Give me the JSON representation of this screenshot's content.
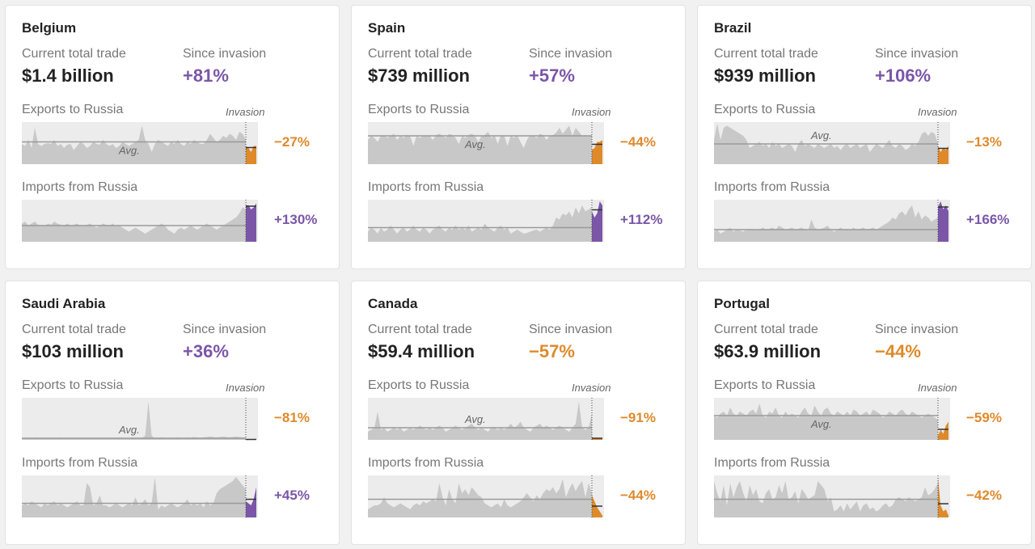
{
  "colors": {
    "up": "#7b56a8",
    "down": "#de8a2b",
    "bg": "#ececec",
    "area": "#c8c8c8",
    "avg": "#9a9a9a"
  },
  "labels": {
    "current_total_trade": "Current total trade",
    "since_invasion": "Since invasion",
    "exports": "Exports to Russia",
    "imports": "Imports from Russia",
    "invasion": "Invasion",
    "avg": "Avg."
  },
  "chart_data": [
    {
      "type": "area",
      "country": "Belgium",
      "total_trade": "$1.4 billion",
      "since_invasion": "+81%",
      "since_dir": "up",
      "exports": {
        "change": "−27%",
        "dir": "down",
        "avg": 0.55,
        "show_avg_label": true,
        "pre": [
          0.5,
          0.45,
          0.6,
          0.4,
          0.9,
          0.5,
          0.45,
          0.5,
          0.52,
          0.5,
          0.6,
          0.45,
          0.5,
          0.4,
          0.48,
          0.5,
          0.35,
          0.45,
          0.55,
          0.5,
          0.4,
          0.45,
          0.55,
          0.5,
          0.48,
          0.6,
          0.5,
          0.45,
          0.5,
          0.4,
          0.45,
          0.55,
          0.5,
          0.45,
          0.5,
          0.55,
          0.6,
          0.95,
          0.6,
          0.5,
          0.3,
          0.5,
          0.6,
          0.55,
          0.5,
          0.45,
          0.55,
          0.5,
          0.6,
          0.5,
          0.45,
          0.55,
          0.5,
          0.6,
          0.55,
          0.5,
          0.5,
          0.6,
          0.75,
          0.65,
          0.55,
          0.6,
          0.7,
          0.65,
          0.75,
          0.7,
          0.6,
          0.8,
          0.75,
          0.6
        ],
        "post": [
          0.45,
          0.4,
          0.3,
          0.45,
          0.45
        ]
      },
      "imports": {
        "change": "+130%",
        "dir": "up",
        "avg": 0.4,
        "pre": [
          0.45,
          0.5,
          0.4,
          0.45,
          0.5,
          0.42,
          0.4,
          0.38,
          0.45,
          0.42,
          0.5,
          0.45,
          0.42,
          0.4,
          0.45,
          0.4,
          0.42,
          0.45,
          0.4,
          0.38,
          0.42,
          0.45,
          0.4,
          0.35,
          0.4,
          0.45,
          0.42,
          0.4,
          0.45,
          0.38,
          0.4,
          0.35,
          0.3,
          0.25,
          0.3,
          0.35,
          0.3,
          0.25,
          0.2,
          0.25,
          0.3,
          0.35,
          0.4,
          0.45,
          0.4,
          0.3,
          0.25,
          0.2,
          0.3,
          0.35,
          0.3,
          0.35,
          0.4,
          0.35,
          0.3,
          0.35,
          0.4,
          0.45,
          0.4,
          0.35,
          0.3,
          0.35,
          0.4,
          0.45,
          0.5,
          0.55,
          0.6,
          0.7,
          0.85,
          0.8
        ],
        "post": [
          0.9,
          0.9,
          0.8,
          0.85,
          0.95
        ]
      }
    },
    {
      "type": "area",
      "country": "Spain",
      "total_trade": "$739 million",
      "since_invasion": "+57%",
      "since_dir": "up",
      "exports": {
        "change": "−44%",
        "dir": "down",
        "avg": 0.7,
        "show_avg_label": true,
        "pre": [
          0.6,
          0.7,
          0.65,
          0.55,
          0.7,
          0.72,
          0.65,
          0.7,
          0.75,
          0.6,
          0.7,
          0.65,
          0.72,
          0.7,
          0.45,
          0.7,
          0.65,
          0.7,
          0.72,
          0.7,
          0.6,
          0.72,
          0.75,
          0.7,
          0.65,
          0.75,
          0.72,
          0.65,
          0.5,
          0.7,
          0.65,
          0.72,
          0.75,
          0.7,
          0.55,
          0.7,
          0.72,
          0.8,
          0.65,
          0.72,
          0.5,
          0.72,
          0.7,
          0.45,
          0.7,
          0.65,
          0.72,
          0.55,
          0.4,
          0.6,
          0.72,
          0.7,
          0.65,
          0.75,
          0.72,
          0.6,
          0.7,
          0.72,
          0.78,
          0.9,
          0.75,
          0.85,
          0.95,
          0.7,
          0.9,
          0.8,
          0.7,
          0.72,
          0.7,
          0.7
        ],
        "post": [
          0.35,
          0.4,
          0.55,
          0.55,
          0.6
        ]
      },
      "imports": {
        "change": "+112%",
        "dir": "up",
        "avg": 0.35,
        "pre": [
          0.25,
          0.35,
          0.3,
          0.2,
          0.35,
          0.25,
          0.3,
          0.4,
          0.3,
          0.2,
          0.3,
          0.35,
          0.25,
          0.3,
          0.4,
          0.3,
          0.25,
          0.35,
          0.3,
          0.2,
          0.3,
          0.35,
          0.4,
          0.3,
          0.25,
          0.35,
          0.3,
          0.4,
          0.3,
          0.35,
          0.3,
          0.4,
          0.25,
          0.3,
          0.35,
          0.3,
          0.45,
          0.35,
          0.3,
          0.25,
          0.35,
          0.4,
          0.3,
          0.35,
          0.2,
          0.25,
          0.3,
          0.25,
          0.2,
          0.22,
          0.25,
          0.28,
          0.3,
          0.25,
          0.3,
          0.35,
          0.3,
          0.4,
          0.6,
          0.55,
          0.7,
          0.65,
          0.75,
          0.6,
          0.85,
          0.7,
          0.9,
          0.75,
          0.8,
          0.85
        ],
        "post": [
          0.75,
          0.6,
          0.7,
          1.0,
          0.9
        ]
      }
    },
    {
      "type": "area",
      "country": "Brazil",
      "total_trade": "$939 million",
      "since_invasion": "+106%",
      "since_dir": "up",
      "exports": {
        "change": "−13%",
        "dir": "down",
        "avg": 0.5,
        "show_avg_label": true,
        "pre": [
          0.6,
          1.0,
          0.6,
          0.9,
          0.95,
          0.9,
          0.85,
          0.8,
          0.75,
          0.7,
          0.6,
          0.4,
          0.45,
          0.5,
          0.55,
          0.45,
          0.5,
          0.4,
          0.55,
          0.45,
          0.5,
          0.4,
          0.45,
          0.5,
          0.45,
          0.3,
          0.5,
          0.6,
          0.45,
          0.5,
          0.45,
          0.4,
          0.5,
          0.45,
          0.4,
          0.45,
          0.5,
          0.4,
          0.45,
          0.35,
          0.45,
          0.5,
          0.4,
          0.45,
          0.5,
          0.4,
          0.45,
          0.5,
          0.3,
          0.4,
          0.5,
          0.45,
          0.4,
          0.5,
          0.6,
          0.45,
          0.4,
          0.5,
          0.45,
          0.35,
          0.4,
          0.5,
          0.45,
          0.55,
          0.75,
          0.8,
          0.7,
          0.8,
          0.75,
          0.5
        ],
        "post": [
          0.45,
          0.3,
          0.4,
          0.35,
          0.45
        ]
      },
      "imports": {
        "change": "+166%",
        "dir": "up",
        "avg": 0.3,
        "pre": [
          0.25,
          0.3,
          0.2,
          0.25,
          0.3,
          0.35,
          0.25,
          0.3,
          0.28,
          0.25,
          0.3,
          0.32,
          0.3,
          0.28,
          0.3,
          0.35,
          0.3,
          0.32,
          0.35,
          0.3,
          0.4,
          0.35,
          0.3,
          0.32,
          0.35,
          0.3,
          0.32,
          0.35,
          0.3,
          0.28,
          0.55,
          0.35,
          0.3,
          0.32,
          0.35,
          0.4,
          0.3,
          0.25,
          0.3,
          0.35,
          0.3,
          0.32,
          0.3,
          0.35,
          0.3,
          0.32,
          0.35,
          0.3,
          0.32,
          0.35,
          0.3,
          0.35,
          0.4,
          0.45,
          0.5,
          0.6,
          0.55,
          0.7,
          0.75,
          0.65,
          0.8,
          0.9,
          0.6,
          0.75,
          0.55,
          0.65,
          0.6,
          0.5,
          0.55,
          0.6
        ],
        "post": [
          0.85,
          1.0,
          0.8,
          0.9,
          0.75
        ]
      }
    },
    {
      "type": "area",
      "country": "Saudi Arabia",
      "total_trade": "$103 million",
      "since_invasion": "+36%",
      "since_dir": "up",
      "exports": {
        "change": "−81%",
        "dir": "down",
        "avg": 0.04,
        "show_avg_label": true,
        "pre": [
          0.03,
          0.04,
          0.05,
          0.03,
          0.06,
          0.04,
          0.03,
          0.05,
          0.04,
          0.03,
          0.05,
          0.04,
          0.06,
          0.04,
          0.03,
          0.05,
          0.04,
          0.03,
          0.04,
          0.05,
          0.04,
          0.03,
          0.05,
          0.04,
          0.03,
          0.04,
          0.05,
          0.04,
          0.03,
          0.05,
          0.04,
          0.03,
          0.05,
          0.04,
          0.06,
          0.05,
          0.04,
          0.05,
          0.1,
          0.95,
          0.1,
          0.04,
          0.05,
          0.06,
          0.05,
          0.04,
          0.05,
          0.04,
          0.06,
          0.05,
          0.04,
          0.06,
          0.05,
          0.07,
          0.06,
          0.05,
          0.06,
          0.07,
          0.08,
          0.07,
          0.06,
          0.07,
          0.08,
          0.07,
          0.06,
          0.07,
          0.08,
          0.07,
          0.06,
          0.05
        ],
        "post": [
          0.01,
          0.01,
          0.01,
          0.01,
          0.01
        ]
      },
      "imports": {
        "change": "+45%",
        "dir": "up",
        "avg": 0.35,
        "pre": [
          0.3,
          0.35,
          0.3,
          0.4,
          0.35,
          0.3,
          0.25,
          0.35,
          0.3,
          0.35,
          0.4,
          0.3,
          0.35,
          0.3,
          0.25,
          0.3,
          0.35,
          0.4,
          0.3,
          0.3,
          0.85,
          0.75,
          0.3,
          0.35,
          0.55,
          0.3,
          0.3,
          0.25,
          0.3,
          0.35,
          0.3,
          0.25,
          0.3,
          0.35,
          0.3,
          0.5,
          0.3,
          0.35,
          0.45,
          0.3,
          0.35,
          1.0,
          0.2,
          0.3,
          0.25,
          0.3,
          0.35,
          0.3,
          0.25,
          0.3,
          0.35,
          0.45,
          0.3,
          0.35,
          0.3,
          0.35,
          0.25,
          0.4,
          0.3,
          0.35,
          0.6,
          0.7,
          0.75,
          0.8,
          0.85,
          0.9,
          1.0,
          0.9,
          0.8,
          0.7
        ],
        "post": [
          0.4,
          0.35,
          0.3,
          0.45,
          0.75
        ]
      }
    },
    {
      "type": "area",
      "country": "Canada",
      "total_trade": "$59.4 million",
      "since_invasion": "−57%",
      "since_dir": "down",
      "exports": {
        "change": "−91%",
        "dir": "down",
        "avg": 0.3,
        "show_avg_label": true,
        "pre": [
          0.2,
          0.25,
          0.3,
          0.7,
          0.25,
          0.3,
          0.2,
          0.25,
          0.3,
          0.25,
          0.3,
          0.2,
          0.25,
          0.3,
          0.25,
          0.3,
          0.35,
          0.3,
          0.25,
          0.3,
          0.25,
          0.3,
          0.35,
          0.3,
          0.2,
          0.25,
          0.3,
          0.35,
          0.3,
          0.25,
          0.3,
          0.35,
          0.4,
          0.3,
          0.25,
          0.3,
          0.25,
          0.2,
          0.3,
          0.3,
          0.25,
          0.3,
          0.25,
          0.3,
          0.4,
          0.3,
          0.35,
          0.45,
          0.3,
          0.25,
          0.2,
          0.3,
          0.35,
          0.4,
          0.3,
          0.35,
          0.3,
          0.25,
          0.3,
          0.35,
          0.3,
          0.25,
          0.2,
          0.3,
          0.4,
          0.95,
          0.3,
          0.25,
          0.3,
          0.65
        ],
        "post": [
          0.04,
          0.04,
          0.04,
          0.04,
          0.04
        ]
      },
      "imports": {
        "change": "−44%",
        "dir": "down",
        "avg": 0.45,
        "pre": [
          0.2,
          0.25,
          0.3,
          0.3,
          0.35,
          0.5,
          0.35,
          0.3,
          0.25,
          0.3,
          0.35,
          0.3,
          0.25,
          0.2,
          0.3,
          0.35,
          0.3,
          0.4,
          0.35,
          0.4,
          0.45,
          0.4,
          0.85,
          0.5,
          0.3,
          0.7,
          0.45,
          0.35,
          0.85,
          0.6,
          0.7,
          0.55,
          0.75,
          0.65,
          0.55,
          0.5,
          0.35,
          0.3,
          0.25,
          0.3,
          0.35,
          0.25,
          0.45,
          0.3,
          0.25,
          0.3,
          0.35,
          0.4,
          0.5,
          0.6,
          0.5,
          0.4,
          0.55,
          0.45,
          0.6,
          0.7,
          0.65,
          0.75,
          0.6,
          0.7,
          0.95,
          0.5,
          0.7,
          0.85,
          0.65,
          0.8,
          0.9,
          0.5,
          0.85,
          0.6
        ],
        "post": [
          0.55,
          0.4,
          0.25,
          0.15,
          0.05
        ]
      }
    },
    {
      "type": "area",
      "country": "Portugal",
      "total_trade": "$63.9 million",
      "since_invasion": "−44%",
      "since_dir": "down",
      "exports": {
        "change": "−59%",
        "dir": "down",
        "avg": 0.6,
        "show_avg_label": true,
        "pre": [
          0.6,
          0.55,
          0.65,
          0.7,
          0.6,
          0.8,
          0.65,
          0.6,
          0.7,
          0.65,
          0.6,
          0.7,
          0.75,
          0.65,
          0.9,
          0.6,
          0.55,
          0.7,
          0.65,
          0.8,
          0.6,
          0.55,
          0.7,
          0.6,
          0.65,
          0.6,
          0.55,
          0.7,
          0.8,
          0.65,
          0.6,
          0.85,
          0.7,
          0.6,
          0.75,
          0.8,
          0.65,
          0.6,
          0.7,
          0.65,
          0.6,
          0.7,
          0.6,
          0.75,
          0.7,
          0.6,
          0.65,
          0.7,
          0.6,
          0.75,
          0.7,
          0.65,
          0.55,
          0.6,
          0.7,
          0.65,
          0.6,
          0.7,
          0.75,
          0.65,
          0.6,
          0.7,
          0.65,
          0.6,
          0.55,
          0.6,
          0.65,
          0.6,
          0.55,
          0.5
        ],
        "post": [
          0.1,
          0.25,
          0.15,
          0.35,
          0.45
        ]
      },
      "imports": {
        "change": "−42%",
        "dir": "down",
        "avg": 0.45,
        "pre": [
          0.9,
          0.6,
          0.4,
          0.8,
          0.3,
          0.85,
          0.5,
          0.75,
          0.9,
          0.6,
          0.4,
          0.8,
          0.55,
          0.7,
          0.4,
          0.35,
          0.6,
          0.7,
          0.45,
          0.5,
          0.8,
          0.6,
          0.9,
          0.45,
          0.5,
          0.65,
          0.35,
          0.7,
          0.6,
          0.45,
          0.5,
          0.55,
          0.9,
          0.8,
          0.7,
          0.4,
          0.5,
          0.15,
          0.2,
          0.3,
          0.15,
          0.35,
          0.2,
          0.3,
          0.4,
          0.15,
          0.3,
          0.35,
          0.2,
          0.25,
          0.15,
          0.2,
          0.3,
          0.35,
          0.25,
          0.3,
          0.45,
          0.5,
          0.45,
          0.4,
          0.5,
          0.45,
          0.4,
          0.45,
          0.5,
          0.75,
          0.55,
          0.6,
          0.7,
          0.85
        ],
        "post": [
          1.0,
          0.3,
          0.15,
          0.2,
          0.05
        ]
      }
    }
  ]
}
